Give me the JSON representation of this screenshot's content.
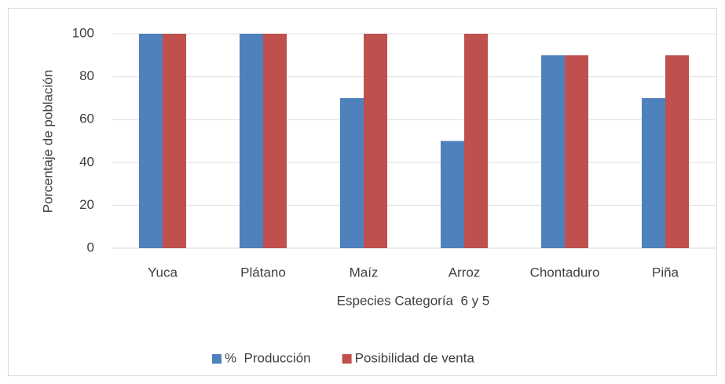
{
  "chart_data": {
    "type": "bar",
    "x_label": "Especies Categoría  6 y 5",
    "y_label": "Porcentaje de población",
    "categories": [
      "Yuca",
      "Plátano",
      "Maíz",
      "Arroz",
      "Chontaduro",
      "Piña"
    ],
    "series": [
      {
        "name": "%  Producción",
        "color": "#4f81bd",
        "values": [
          100,
          100,
          70,
          50,
          90,
          70
        ]
      },
      {
        "name": "Posibilidad de venta",
        "color": "#c0504d",
        "values": [
          100,
          100,
          100,
          100,
          90,
          90
        ]
      }
    ],
    "ylim": [
      0,
      100
    ],
    "yticks": [
      0,
      20,
      40,
      60,
      80,
      100
    ],
    "grid": true,
    "legend": "bottom"
  }
}
